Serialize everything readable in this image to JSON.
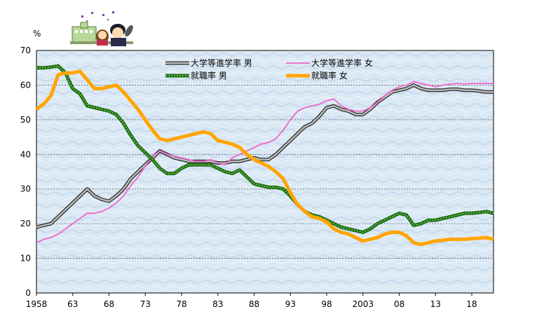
{
  "chart_data": {
    "type": "line",
    "ylabel": "%",
    "ylim": [
      0,
      70
    ],
    "yticks": [
      "0",
      "10",
      "20",
      "30",
      "40",
      "50",
      "60",
      "70"
    ],
    "xlim": [
      1958,
      2021
    ],
    "xticks": [
      {
        "value": 1958,
        "label": "1958"
      },
      {
        "value": 1963,
        "label": "63"
      },
      {
        "value": 1968,
        "label": "68"
      },
      {
        "value": 1973,
        "label": "73"
      },
      {
        "value": 1978,
        "label": "78"
      },
      {
        "value": 1983,
        "label": "83"
      },
      {
        "value": 1988,
        "label": "88"
      },
      {
        "value": 1993,
        "label": "93"
      },
      {
        "value": 1998,
        "label": "98"
      },
      {
        "value": 2003,
        "label": "2003"
      },
      {
        "value": 2008,
        "label": "08"
      },
      {
        "value": 2013,
        "label": "13"
      },
      {
        "value": 2018,
        "label": "18"
      }
    ],
    "grid": true,
    "legend_position": "top-center",
    "x": [
      1958,
      1959,
      1960,
      1961,
      1962,
      1963,
      1964,
      1965,
      1966,
      1967,
      1968,
      1969,
      1970,
      1971,
      1972,
      1973,
      1974,
      1975,
      1976,
      1977,
      1978,
      1979,
      1980,
      1981,
      1982,
      1983,
      1984,
      1985,
      1986,
      1987,
      1988,
      1989,
      1990,
      1991,
      1992,
      1993,
      1994,
      1995,
      1996,
      1997,
      1998,
      1999,
      2000,
      2001,
      2002,
      2003,
      2004,
      2005,
      2006,
      2007,
      2008,
      2009,
      2010,
      2011,
      2012,
      2013,
      2014,
      2015,
      2016,
      2017,
      2018,
      2019,
      2020,
      2021
    ],
    "series": [
      {
        "name": "大学等進学率 男",
        "color": "#707070",
        "values": [
          19.0,
          19.5,
          20.0,
          22.0,
          24.0,
          26.0,
          28.0,
          30.0,
          28.0,
          27.0,
          26.5,
          28.0,
          30.0,
          33.0,
          35.0,
          37.0,
          39.0,
          41.0,
          40.0,
          39.0,
          38.5,
          38.0,
          38.0,
          38.0,
          38.0,
          37.5,
          37.5,
          38.0,
          38.0,
          38.5,
          39.0,
          38.5,
          38.5,
          40.0,
          42.0,
          44.0,
          46.0,
          48.0,
          49.0,
          51.0,
          53.5,
          54.0,
          53.0,
          52.5,
          51.5,
          51.5,
          53.0,
          55.0,
          56.5,
          58.0,
          58.5,
          59.0,
          60.0,
          59.0,
          58.5,
          58.5,
          58.5,
          58.8,
          58.8,
          58.5,
          58.5,
          58.3,
          58.0,
          58.0
        ]
      },
      {
        "name": "大学等進学率 女",
        "color": "#ee66cc",
        "values": [
          14.5,
          15.5,
          16.0,
          17.0,
          18.5,
          20.0,
          21.5,
          23.0,
          23.0,
          23.5,
          24.5,
          26.0,
          28.0,
          31.0,
          33.5,
          36.5,
          39.5,
          41.0,
          40.0,
          39.5,
          39.0,
          38.5,
          38.0,
          38.0,
          38.5,
          37.5,
          37.0,
          39.0,
          40.0,
          41.0,
          42.0,
          43.0,
          43.5,
          44.5,
          47.0,
          50.0,
          52.5,
          53.5,
          54.0,
          54.5,
          55.5,
          56.0,
          54.0,
          53.0,
          52.5,
          52.5,
          53.5,
          55.0,
          57.0,
          58.5,
          59.5,
          60.0,
          61.0,
          60.5,
          60.0,
          59.5,
          60.0,
          60.3,
          60.5,
          60.3,
          60.5,
          60.5,
          60.5,
          60.5
        ]
      },
      {
        "name": "就職率 男",
        "color": "#2e8b1e",
        "values": [
          65.0,
          65.0,
          65.2,
          65.5,
          63.5,
          59.0,
          57.5,
          54.0,
          53.5,
          53.0,
          52.5,
          51.5,
          49.0,
          45.5,
          42.5,
          40.5,
          38.5,
          36.0,
          34.5,
          34.5,
          36.0,
          37.0,
          37.0,
          37.0,
          37.0,
          36.0,
          35.0,
          34.5,
          35.5,
          33.5,
          31.5,
          31.0,
          30.5,
          30.5,
          30.0,
          28.0,
          25.5,
          23.5,
          22.5,
          22.0,
          21.0,
          20.0,
          19.0,
          18.5,
          18.0,
          17.5,
          18.5,
          20.0,
          21.0,
          22.0,
          23.0,
          22.5,
          19.5,
          20.0,
          21.0,
          21.0,
          21.5,
          22.0,
          22.5,
          23.0,
          23.0,
          23.2,
          23.5,
          23.0
        ]
      },
      {
        "name": "就職率 女",
        "color": "#ffa500",
        "values": [
          53.0,
          54.5,
          57.0,
          63.0,
          63.5,
          63.5,
          64.0,
          61.5,
          59.0,
          59.0,
          59.5,
          60.0,
          58.0,
          55.5,
          53.0,
          50.0,
          47.0,
          44.5,
          44.0,
          44.5,
          45.0,
          45.5,
          46.0,
          46.5,
          46.0,
          44.0,
          43.5,
          43.0,
          42.0,
          40.0,
          38.5,
          37.5,
          36.5,
          35.0,
          33.0,
          29.0,
          25.5,
          23.5,
          22.0,
          21.5,
          20.5,
          18.5,
          17.5,
          17.0,
          16.0,
          15.0,
          15.5,
          16.0,
          17.0,
          17.5,
          17.5,
          16.5,
          14.5,
          14.0,
          14.5,
          15.0,
          15.2,
          15.5,
          15.5,
          15.5,
          15.7,
          15.8,
          16.0,
          15.5
        ]
      }
    ]
  }
}
